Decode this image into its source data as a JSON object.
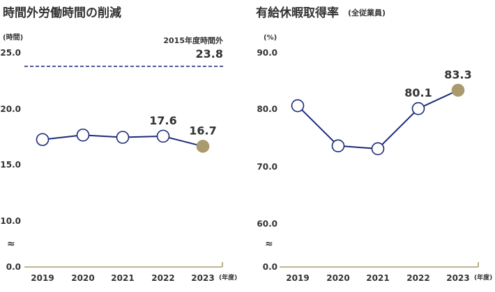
{
  "colors": {
    "line": "#1b2a78",
    "marker_fill": "#ffffff",
    "highlight": "#a99b6d",
    "axis": "#a99b6d",
    "text": "#333333"
  },
  "break_symbol": "≈",
  "chart_data": [
    {
      "type": "line",
      "title": "時間外労働時間の削減",
      "ylabel": "(時間)",
      "xunit": "(年度)",
      "categories": [
        "2019",
        "2020",
        "2021",
        "2022",
        "2023"
      ],
      "series": [
        {
          "values": [
            17.3,
            17.7,
            17.5,
            17.6,
            16.7
          ]
        }
      ],
      "data_labels": [
        {
          "index": 3,
          "text": "17.6"
        },
        {
          "index": 4,
          "text": "16.7"
        }
      ],
      "highlight_index": 4,
      "yticks": [
        "0.0",
        "10.0",
        "15.0",
        "20.0",
        "25.0"
      ],
      "ylim": [
        0,
        25
      ],
      "axis_break": "between 0.0 and 10.0",
      "reference_line": {
        "value": 23.8,
        "label": "2015年度時間外",
        "value_label": "23.8",
        "style": "dashed"
      }
    },
    {
      "type": "line",
      "title": "有給休暇取得率",
      "subtitle": "(全従業員)",
      "ylabel": "(%)",
      "xunit": "(年度)",
      "categories": [
        "2019",
        "2020",
        "2021",
        "2022",
        "2023"
      ],
      "series": [
        {
          "values": [
            80.6,
            73.6,
            73.1,
            80.1,
            83.3
          ]
        }
      ],
      "data_labels": [
        {
          "index": 3,
          "text": "80.1"
        },
        {
          "index": 4,
          "text": "83.3"
        }
      ],
      "highlight_index": 4,
      "yticks": [
        "0.0",
        "60.0",
        "70.0",
        "80.0",
        "90.0"
      ],
      "ylim": [
        0,
        90
      ],
      "axis_break": "between 0.0 and 60.0"
    }
  ]
}
